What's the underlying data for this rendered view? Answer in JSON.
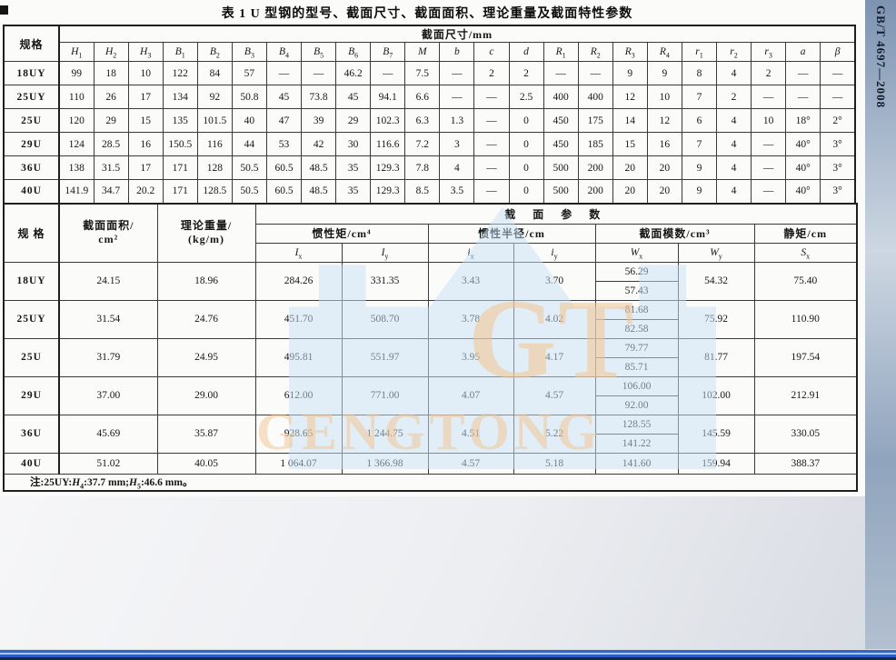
{
  "page": {
    "title": "表 1  U 型钢的型号、截面尺寸、截面面积、理论重量及截面特性参数",
    "side_label": "GB/T 4697—2008",
    "watermark": {
      "letters": "GT",
      "name": "GENGTONG"
    },
    "colors": {
      "bar_blue": "#2b5cc2",
      "strip_blue": "#7d93b1",
      "watermark_blue": "#c7e0f3",
      "watermark_orange": "#f4c38f"
    }
  },
  "table1": {
    "corner_header": "规格",
    "group_header": "截面尺寸/mm",
    "columns": [
      "H_1",
      "H_2",
      "H_3",
      "B_1",
      "B_2",
      "B_3",
      "B_4",
      "B_5",
      "B_6",
      "B_7",
      "M",
      "b",
      "c",
      "d",
      "R_1",
      "R_2",
      "R_3",
      "R_4",
      "r_1",
      "r_2",
      "r_3",
      "a",
      "β"
    ],
    "rows": [
      {
        "spec": "18UY",
        "values": [
          "99",
          "18",
          "10",
          "122",
          "84",
          "57",
          "—",
          "—",
          "46.2",
          "—",
          "7.5",
          "—",
          "2",
          "2",
          "—",
          "—",
          "9",
          "9",
          "8",
          "4",
          "2",
          "—",
          "—"
        ]
      },
      {
        "spec": "25UY",
        "values": [
          "110",
          "26",
          "17",
          "134",
          "92",
          "50.8",
          "45",
          "73.8",
          "45",
          "94.1",
          "6.6",
          "—",
          "—",
          "2.5",
          "400",
          "400",
          "12",
          "10",
          "7",
          "2",
          "—",
          "—",
          "—"
        ]
      },
      {
        "spec": "25U",
        "values": [
          "120",
          "29",
          "15",
          "135",
          "101.5",
          "40",
          "47",
          "39",
          "29",
          "102.3",
          "6.3",
          "1.3",
          "—",
          "0",
          "450",
          "175",
          "14",
          "12",
          "6",
          "4",
          "10",
          "18°",
          "2°"
        ]
      },
      {
        "spec": "29U",
        "values": [
          "124",
          "28.5",
          "16",
          "150.5",
          "116",
          "44",
          "53",
          "42",
          "30",
          "116.6",
          "7.2",
          "3",
          "—",
          "0",
          "450",
          "185",
          "15",
          "16",
          "7",
          "4",
          "—",
          "40°",
          "3°"
        ]
      },
      {
        "spec": "36U",
        "values": [
          "138",
          "31.5",
          "17",
          "171",
          "128",
          "50.5",
          "60.5",
          "48.5",
          "35",
          "129.3",
          "7.8",
          "4",
          "—",
          "0",
          "500",
          "200",
          "20",
          "20",
          "9",
          "4",
          "—",
          "40°",
          "3°"
        ]
      },
      {
        "spec": "40U",
        "values": [
          "141.9",
          "34.7",
          "20.2",
          "171",
          "128.5",
          "50.5",
          "60.5",
          "48.5",
          "35",
          "129.3",
          "8.5",
          "3.5",
          "—",
          "0",
          "500",
          "200",
          "20",
          "20",
          "9",
          "4",
          "—",
          "40°",
          "3°"
        ]
      }
    ]
  },
  "table2": {
    "corner_header": "规  格",
    "area_header_lines": [
      "截面面积/",
      "cm²"
    ],
    "weight_header_lines": [
      "理论重量/",
      "(kg/m)"
    ],
    "params_header": "截 面 参 数",
    "group_headers": [
      "惯性矩/cm⁴",
      "惯性半径/cm",
      "截面模数/cm³",
      "静矩/cm"
    ],
    "sub_columns": [
      "I_x",
      "I_y",
      "i_x",
      "i_y",
      "W_x",
      "W_y",
      "S_x"
    ],
    "rows": [
      {
        "spec": "18UY",
        "area": "24.15",
        "weight": "18.96",
        "Ix": "284.26",
        "Iy": "331.35",
        "ix": "3.43",
        "iy": "3.70",
        "Wx": [
          "56.29",
          "57.43"
        ],
        "Wy": "54.32",
        "Sx": "75.40"
      },
      {
        "spec": "25UY",
        "area": "31.54",
        "weight": "24.76",
        "Ix": "451.70",
        "Iy": "508.70",
        "ix": "3.78",
        "iy": "4.02",
        "Wx": [
          "81.68",
          "82.58"
        ],
        "Wy": "75.92",
        "Sx": "110.90"
      },
      {
        "spec": "25U",
        "area": "31.79",
        "weight": "24.95",
        "Ix": "495.81",
        "Iy": "551.97",
        "ix": "3.95",
        "iy": "4.17",
        "Wx": [
          "79.77",
          "85.71"
        ],
        "Wy": "81.77",
        "Sx": "197.54"
      },
      {
        "spec": "29U",
        "area": "37.00",
        "weight": "29.00",
        "Ix": "612.00",
        "Iy": "771.00",
        "ix": "4.07",
        "iy": "4.57",
        "Wx": [
          "106.00",
          "92.00"
        ],
        "Wy": "102.00",
        "Sx": "212.91"
      },
      {
        "spec": "36U",
        "area": "45.69",
        "weight": "35.87",
        "Ix": "928.65",
        "Iy": "1 244.75",
        "ix": "4.51",
        "iy": "5.22",
        "Wx": [
          "128.55",
          "141.22"
        ],
        "Wy": "145.59",
        "Sx": "330.05"
      },
      {
        "spec": "40U",
        "area": "51.02",
        "weight": "40.05",
        "Ix": "1 064.07",
        "Iy": "1 366.98",
        "ix": "4.57",
        "iy": "5.18",
        "Wx": [
          "141.60"
        ],
        "Wy": "159.94",
        "Sx": "388.37"
      }
    ],
    "note_segments": [
      {
        "t": "注:25UY:"
      },
      {
        "t": "H",
        "s": "4"
      },
      {
        "t": ":37.7 mm;"
      },
      {
        "t": "H",
        "s": "5"
      },
      {
        "t": ":46.6 mm。"
      }
    ]
  }
}
